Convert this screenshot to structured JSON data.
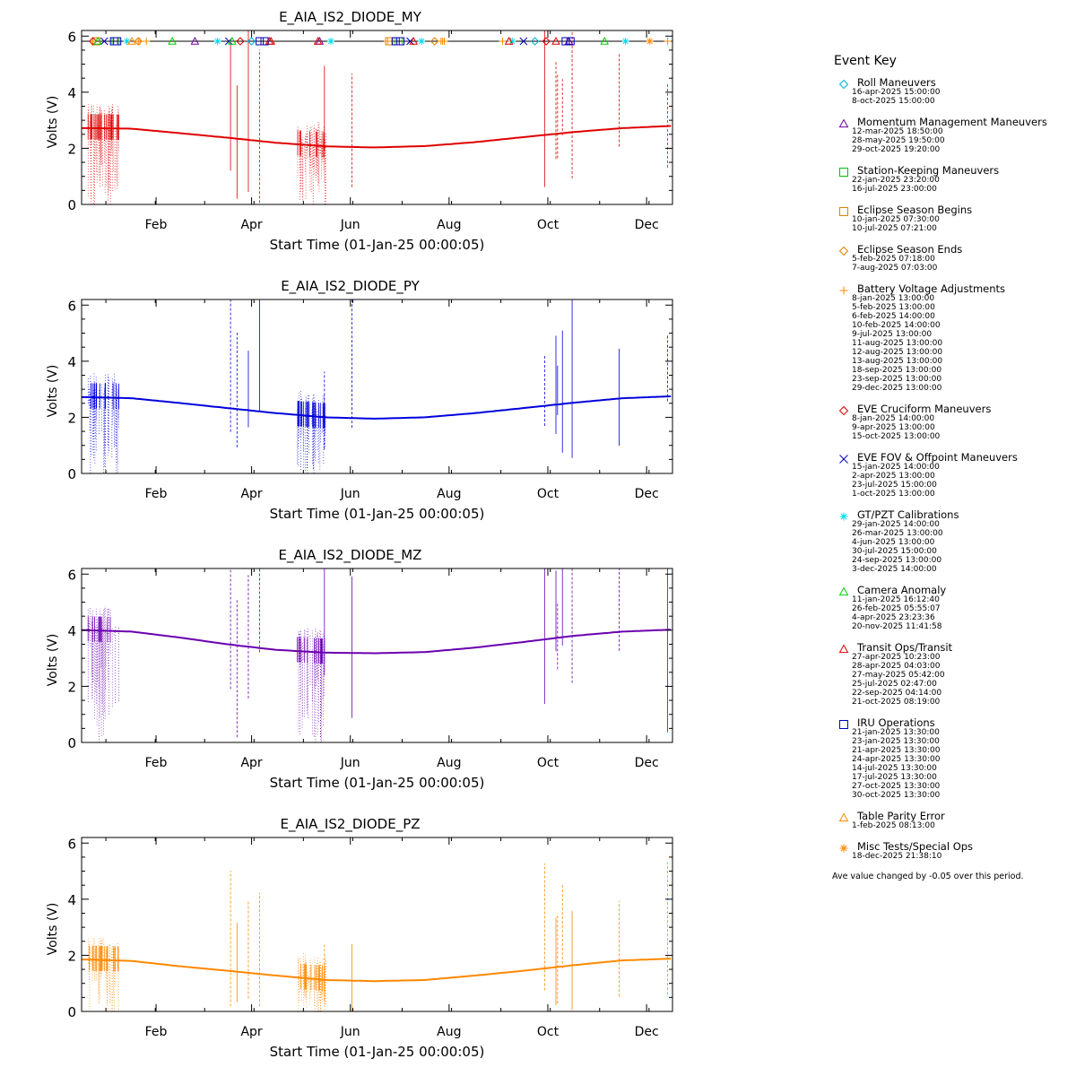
{
  "chart_data": [
    {
      "type": "line",
      "title": "E_AIA_IS2_DIODE_MY",
      "xlabel": "Start Time (01-Jan-25 00:00:05)",
      "ylabel": "Volts (V)",
      "ylim": [
        0,
        6.2
      ],
      "xlim_days": [
        0,
        365
      ],
      "x_ticks": [
        "Feb",
        "Apr",
        "Jun",
        "Aug",
        "Oct",
        "Dec"
      ],
      "y_ticks": [
        0,
        2,
        4,
        6
      ],
      "color": "#e00000",
      "series": [
        {
          "x": [
            "Jan-05",
            "Feb-01",
            "Mar-01",
            "Apr-01",
            "May-01",
            "Jun-01",
            "Jul-01",
            "Aug-01",
            "Sep-01",
            "Oct-01",
            "Nov-01",
            "Dec-01",
            "Dec-31"
          ],
          "values": [
            2.72,
            2.7,
            2.55,
            2.38,
            2.2,
            2.07,
            2.03,
            2.08,
            2.22,
            2.4,
            2.58,
            2.72,
            2.8
          ]
        }
      ],
      "event_markers": true
    },
    {
      "type": "line",
      "title": "E_AIA_IS2_DIODE_PY",
      "xlabel": "Start Time (01-Jan-25 00:00:05)",
      "ylabel": "Volts (V)",
      "ylim": [
        0,
        6.2
      ],
      "xlim_days": [
        0,
        365
      ],
      "x_ticks": [
        "Feb",
        "Apr",
        "Jun",
        "Aug",
        "Oct",
        "Dec"
      ],
      "y_ticks": [
        0,
        2,
        4,
        6
      ],
      "color": "#0000dd",
      "series": [
        {
          "x": [
            "Jan-05",
            "Feb-01",
            "Mar-01",
            "Apr-01",
            "May-01",
            "Jun-01",
            "Jul-01",
            "Aug-01",
            "Sep-01",
            "Oct-01",
            "Nov-01",
            "Dec-01",
            "Dec-31"
          ],
          "values": [
            2.72,
            2.68,
            2.52,
            2.33,
            2.15,
            2.0,
            1.95,
            2.0,
            2.15,
            2.33,
            2.52,
            2.68,
            2.75
          ]
        }
      ],
      "event_markers": false
    },
    {
      "type": "line",
      "title": "E_AIA_IS2_DIODE_MZ",
      "xlabel": "Start Time (01-Jan-25 00:00:05)",
      "ylabel": "Volts (V)",
      "ylim": [
        0,
        6.2
      ],
      "xlim_days": [
        0,
        365
      ],
      "x_ticks": [
        "Feb",
        "Apr",
        "Jun",
        "Aug",
        "Oct",
        "Dec"
      ],
      "y_ticks": [
        0,
        2,
        4,
        6
      ],
      "color": "#6a00b0",
      "series": [
        {
          "x": [
            "Jan-05",
            "Feb-01",
            "Mar-01",
            "Apr-01",
            "May-01",
            "Jun-01",
            "Jul-01",
            "Aug-01",
            "Sep-01",
            "Oct-01",
            "Nov-01",
            "Dec-01",
            "Dec-31"
          ],
          "values": [
            4.0,
            3.95,
            3.75,
            3.5,
            3.3,
            3.2,
            3.18,
            3.22,
            3.38,
            3.58,
            3.8,
            3.95,
            4.02
          ]
        }
      ],
      "event_markers": false
    },
    {
      "type": "line",
      "title": "E_AIA_IS2_DIODE_PZ",
      "xlabel": "Start Time (01-Jan-25 00:00:05)",
      "ylabel": "Volts (V)",
      "ylim": [
        0,
        6.2
      ],
      "xlim_days": [
        0,
        365
      ],
      "x_ticks": [
        "Feb",
        "Apr",
        "Jun",
        "Aug",
        "Oct",
        "Dec"
      ],
      "y_ticks": [
        0,
        2,
        4,
        6
      ],
      "color": "#ff8800",
      "series": [
        {
          "x": [
            "Jan-05",
            "Feb-01",
            "Mar-01",
            "Apr-01",
            "May-01",
            "Jun-01",
            "Jul-01",
            "Aug-01",
            "Sep-01",
            "Oct-01",
            "Nov-01",
            "Dec-01",
            "Dec-31"
          ],
          "values": [
            1.85,
            1.8,
            1.62,
            1.45,
            1.28,
            1.12,
            1.08,
            1.12,
            1.28,
            1.45,
            1.65,
            1.82,
            1.88
          ]
        }
      ],
      "event_markers": false
    }
  ],
  "legend": {
    "title": "Event Key",
    "events": [
      {
        "name": "Roll Maneuvers",
        "symbol": "diamond",
        "color": "#00b0e0",
        "dates": [
          "16-apr-2025 15:00:00",
          "8-oct-2025 15:00:00"
        ]
      },
      {
        "name": "Momentum Management Maneuvers",
        "symbol": "triangle",
        "color": "#7000a0",
        "dates": [
          "12-mar-2025 18:50:00",
          "28-may-2025 19:50:00",
          "29-oct-2025 19:20:00"
        ]
      },
      {
        "name": "Station-Keeping Maneuvers",
        "symbol": "square",
        "color": "#00c000",
        "dates": [
          "22-jan-2025 23:20:00",
          "16-jul-2025 23:00:00"
        ]
      },
      {
        "name": "Eclipse Season Begins",
        "symbol": "square",
        "color": "#e08000",
        "dates": [
          "10-jan-2025 07:30:00",
          "10-jul-2025 07:21:00"
        ]
      },
      {
        "name": "Eclipse Season Ends",
        "symbol": "diamond",
        "color": "#e08000",
        "dates": [
          "5-feb-2025 07:18:00",
          "7-aug-2025 07:03:00"
        ]
      },
      {
        "name": "Battery Voltage Adjustments",
        "symbol": "plus",
        "color": "#ff8800",
        "dates": [
          "8-jan-2025 13:00:00",
          "5-feb-2025 13:00:00",
          "6-feb-2025 14:00:00",
          "10-feb-2025 14:00:00",
          "9-jul-2025 13:00:00",
          "11-aug-2025 13:00:00",
          "12-aug-2025 13:00:00",
          "13-aug-2025 13:00:00",
          "18-sep-2025 13:00:00",
          "23-sep-2025 13:00:00",
          "29-dec-2025 13:00:00"
        ]
      },
      {
        "name": "EVE Cruciform Maneuvers",
        "symbol": "diamond",
        "color": "#e00000",
        "dates": [
          "8-jan-2025 14:00:00",
          "9-apr-2025 13:00:00",
          "15-oct-2025 13:00:00"
        ]
      },
      {
        "name": "EVE FOV & Offpoint Maneuvers",
        "symbol": "x",
        "color": "#0000c0",
        "dates": [
          "15-jan-2025 14:00:00",
          "2-apr-2025 13:00:00",
          "23-jul-2025 15:00:00",
          "1-oct-2025 13:00:00"
        ]
      },
      {
        "name": "GT/PZT Calibrations",
        "symbol": "asterisk",
        "color": "#00d8e8",
        "dates": [
          "29-jan-2025 14:00:00",
          "26-mar-2025 13:00:00",
          "4-jun-2025 13:00:00",
          "30-jul-2025 15:00:00",
          "24-sep-2025 13:00:00",
          "3-dec-2025 14:00:00"
        ]
      },
      {
        "name": "Camera Anomaly",
        "symbol": "triangle",
        "color": "#00d000",
        "dates": [
          "11-jan-2025 16:12:40",
          "26-feb-2025 05:55:07",
          "4-apr-2025 23:23:36",
          "20-nov-2025 11:41:58"
        ]
      },
      {
        "name": "Transit Ops/Transit",
        "symbol": "triangle",
        "color": "#e00000",
        "dates": [
          "27-apr-2025 10:23:00",
          "28-apr-2025 04:03:00",
          "27-may-2025 05:42:00",
          "25-jul-2025 02:47:00",
          "22-sep-2025 04:14:00",
          "21-oct-2025 08:19:00"
        ]
      },
      {
        "name": "IRU Operations",
        "symbol": "square",
        "color": "#0000c0",
        "dates": [
          "21-jan-2025 13:30:00",
          "23-jan-2025 13:30:00",
          "21-apr-2025 13:30:00",
          "24-apr-2025 13:30:00",
          "14-jul-2025 13:30:00",
          "17-jul-2025 13:30:00",
          "27-oct-2025 13:30:00",
          "30-oct-2025 13:30:00"
        ]
      },
      {
        "name": "Table Parity Error",
        "symbol": "triangle",
        "color": "#ff8800",
        "dates": [
          "1-feb-2025 08:13:00"
        ]
      },
      {
        "name": "Misc Tests/Special Ops",
        "symbol": "asterisk",
        "color": "#ff8800",
        "dates": [
          "18-dec-2025 21:38:10"
        ]
      }
    ],
    "note": "Ave value changed by -0.05 over this period."
  }
}
